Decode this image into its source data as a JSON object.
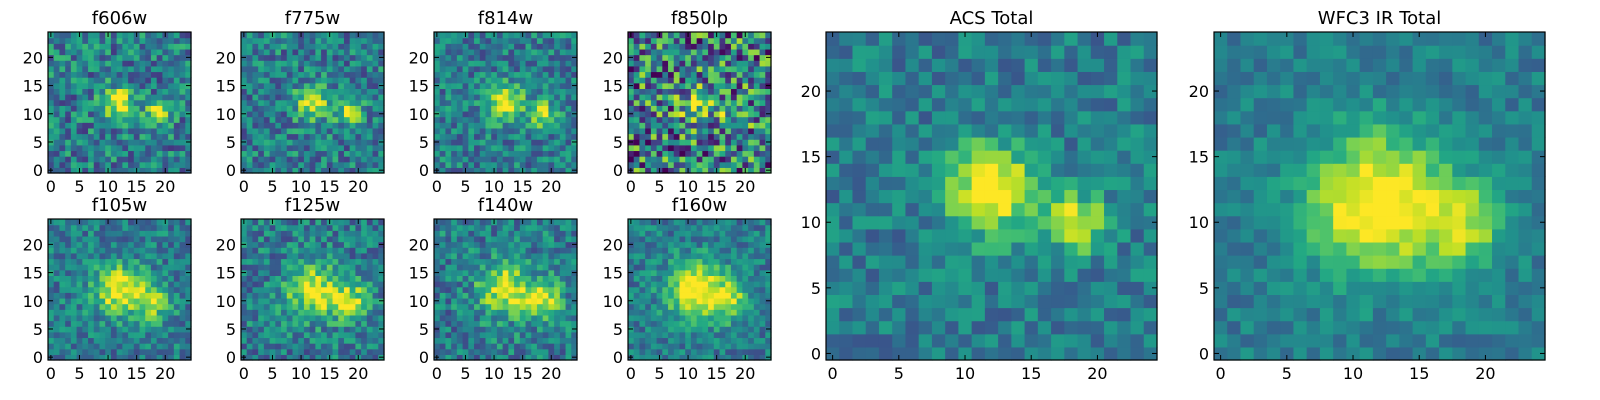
{
  "chart_data": [
    {
      "type": "heatmap",
      "title": "f606w",
      "xticks": [
        0,
        5,
        10,
        15,
        20
      ],
      "yticks": [
        0,
        5,
        10,
        15,
        20
      ],
      "xlim": [
        0,
        25
      ],
      "ylim": [
        0,
        25
      ],
      "grid": false,
      "colormap": "viridis",
      "image_size": [
        25,
        25
      ],
      "noise_level": 0.26,
      "sources": [
        {
          "x": 12,
          "y": 12,
          "amplitude": 0.55,
          "sigma": 2.0
        },
        {
          "x": 18.5,
          "y": 10,
          "amplitude": 0.45,
          "sigma": 1.5
        }
      ],
      "seed": 11
    },
    {
      "type": "heatmap",
      "title": "f775w",
      "xticks": [
        0,
        5,
        10,
        15,
        20
      ],
      "yticks": [
        0,
        5,
        10,
        15,
        20
      ],
      "xlim": [
        0,
        25
      ],
      "ylim": [
        0,
        25
      ],
      "grid": false,
      "colormap": "viridis",
      "image_size": [
        25,
        25
      ],
      "noise_level": 0.24,
      "sources": [
        {
          "x": 12,
          "y": 12,
          "amplitude": 0.55,
          "sigma": 2.1
        },
        {
          "x": 18.5,
          "y": 10.5,
          "amplitude": 0.45,
          "sigma": 1.6
        }
      ],
      "seed": 23
    },
    {
      "type": "heatmap",
      "title": "f814w",
      "xticks": [
        0,
        5,
        10,
        15,
        20
      ],
      "yticks": [
        0,
        5,
        10,
        15,
        20
      ],
      "xlim": [
        0,
        25
      ],
      "ylim": [
        0,
        25
      ],
      "grid": false,
      "colormap": "viridis",
      "image_size": [
        25,
        25
      ],
      "noise_level": 0.22,
      "sources": [
        {
          "x": 12,
          "y": 12,
          "amplitude": 0.6,
          "sigma": 2.2
        },
        {
          "x": 18.5,
          "y": 10,
          "amplitude": 0.5,
          "sigma": 1.6
        }
      ],
      "seed": 37
    },
    {
      "type": "heatmap",
      "title": "f850lp",
      "xticks": [
        0,
        5,
        10,
        15,
        20
      ],
      "yticks": [
        0,
        5,
        10,
        15,
        20
      ],
      "xlim": [
        0,
        25
      ],
      "ylim": [
        0,
        25
      ],
      "grid": false,
      "colormap": "viridis",
      "image_size": [
        25,
        25
      ],
      "noise_level": 0.45,
      "sources": [
        {
          "x": 12,
          "y": 12,
          "amplitude": 0.35,
          "sigma": 2.5
        },
        {
          "x": 18.5,
          "y": 10,
          "amplitude": 0.25,
          "sigma": 1.8
        }
      ],
      "seed": 41
    },
    {
      "type": "heatmap",
      "title": "f105w",
      "xticks": [
        0,
        5,
        10,
        15,
        20
      ],
      "yticks": [
        0,
        5,
        10,
        15,
        20
      ],
      "xlim": [
        0,
        25
      ],
      "ylim": [
        0,
        25
      ],
      "grid": false,
      "colormap": "viridis",
      "image_size": [
        25,
        25
      ],
      "noise_level": 0.2,
      "sources": [
        {
          "x": 12,
          "y": 12,
          "amplitude": 0.6,
          "sigma": 3.0
        },
        {
          "x": 18,
          "y": 10,
          "amplitude": 0.45,
          "sigma": 2.2
        }
      ],
      "seed": 53
    },
    {
      "type": "heatmap",
      "title": "f125w",
      "xticks": [
        0,
        5,
        10,
        15,
        20
      ],
      "yticks": [
        0,
        5,
        10,
        15,
        20
      ],
      "xlim": [
        0,
        25
      ],
      "ylim": [
        0,
        25
      ],
      "grid": false,
      "colormap": "viridis",
      "image_size": [
        25,
        25
      ],
      "noise_level": 0.22,
      "sources": [
        {
          "x": 12,
          "y": 12,
          "amplitude": 0.55,
          "sigma": 3.2
        },
        {
          "x": 18.5,
          "y": 10,
          "amplitude": 0.5,
          "sigma": 2.3
        }
      ],
      "seed": 67
    },
    {
      "type": "heatmap",
      "title": "f140w",
      "xticks": [
        0,
        5,
        10,
        15,
        20
      ],
      "yticks": [
        0,
        5,
        10,
        15,
        20
      ],
      "xlim": [
        0,
        25
      ],
      "ylim": [
        0,
        25
      ],
      "grid": false,
      "colormap": "viridis",
      "image_size": [
        25,
        25
      ],
      "noise_level": 0.22,
      "sources": [
        {
          "x": 12,
          "y": 12,
          "amplitude": 0.55,
          "sigma": 3.2
        },
        {
          "x": 18.5,
          "y": 10,
          "amplitude": 0.5,
          "sigma": 2.3
        }
      ],
      "seed": 79
    },
    {
      "type": "heatmap",
      "title": "f160w",
      "xticks": [
        0,
        5,
        10,
        15,
        20
      ],
      "yticks": [
        0,
        5,
        10,
        15,
        20
      ],
      "xlim": [
        0,
        25
      ],
      "ylim": [
        0,
        25
      ],
      "grid": false,
      "colormap": "viridis",
      "image_size": [
        25,
        25
      ],
      "noise_level": 0.18,
      "sources": [
        {
          "x": 11.5,
          "y": 12,
          "amplitude": 0.7,
          "sigma": 3.4
        },
        {
          "x": 17.5,
          "y": 10,
          "amplitude": 0.4,
          "sigma": 2.4
        }
      ],
      "seed": 83
    },
    {
      "type": "heatmap",
      "title": "ACS Total",
      "xticks": [
        0,
        5,
        10,
        15,
        20
      ],
      "yticks": [
        0,
        5,
        10,
        15,
        20
      ],
      "xlim": [
        0,
        25
      ],
      "ylim": [
        0,
        25
      ],
      "grid": false,
      "colormap": "viridis",
      "image_size": [
        25,
        25
      ],
      "noise_level": 0.16,
      "sources": [
        {
          "x": 12,
          "y": 12.5,
          "amplitude": 0.7,
          "sigma": 2.3
        },
        {
          "x": 18.5,
          "y": 10,
          "amplitude": 0.55,
          "sigma": 1.5
        }
      ],
      "seed": 97
    },
    {
      "type": "heatmap",
      "title": "WFC3 IR Total",
      "xticks": [
        0,
        5,
        10,
        15,
        20
      ],
      "yticks": [
        0,
        5,
        10,
        15,
        20
      ],
      "xlim": [
        0,
        25
      ],
      "ylim": [
        0,
        25
      ],
      "grid": false,
      "colormap": "viridis",
      "image_size": [
        25,
        25
      ],
      "noise_level": 0.12,
      "sources": [
        {
          "x": 12,
          "y": 11.5,
          "amplitude": 0.7,
          "sigma": 3.6
        },
        {
          "x": 18.5,
          "y": 10,
          "amplitude": 0.4,
          "sigma": 2.3
        }
      ],
      "seed": 101
    }
  ]
}
